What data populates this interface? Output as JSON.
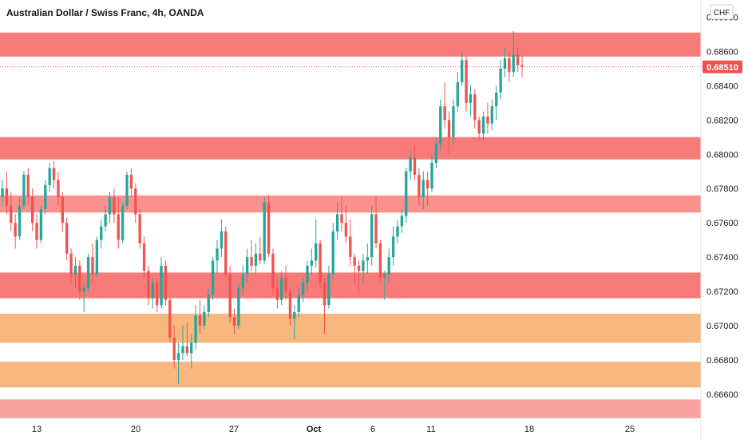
{
  "chart_data": {
    "type": "candlestick",
    "title": "Australian Dollar / Swiss Franc, 4h, OANDA",
    "currency": "CHF",
    "last_price": "0.68510",
    "ylim": [
      0.6646,
      0.689
    ],
    "y_ticks": [
      "0.68800",
      "0.68600",
      "0.68400",
      "0.68200",
      "0.68000",
      "0.67800",
      "0.67600",
      "0.67400",
      "0.67200",
      "0.67000",
      "0.66800",
      "0.66600"
    ],
    "x_ticks": [
      {
        "label": "13",
        "bold": false
      },
      {
        "label": "20",
        "bold": false
      },
      {
        "label": "27",
        "bold": false
      },
      {
        "label": "Oct",
        "bold": true
      },
      {
        "label": "6",
        "bold": false
      },
      {
        "label": "11",
        "bold": false
      },
      {
        "label": "18",
        "bold": false
      },
      {
        "label": "25",
        "bold": false
      }
    ],
    "zones": [
      {
        "from": 0.6857,
        "to": 0.6871,
        "color": "#f77c79"
      },
      {
        "from": 0.6797,
        "to": 0.681,
        "color": "#f77c79"
      },
      {
        "from": 0.6766,
        "to": 0.6776,
        "color": "#f9918e"
      },
      {
        "from": 0.6716,
        "to": 0.6731,
        "color": "#f77c79"
      },
      {
        "from": 0.669,
        "to": 0.6707,
        "color": "#f7b77f"
      },
      {
        "from": 0.6664,
        "to": 0.6679,
        "color": "#f7b77f"
      },
      {
        "from": 0.6646,
        "to": 0.6657,
        "color": "#f9a3a1"
      }
    ],
    "colors": {
      "up": "#26a69a",
      "down": "#ef5350",
      "price_line": "#ef5350"
    },
    "candles": [
      [
        0.6775,
        0.6785,
        0.677,
        0.678
      ],
      [
        0.678,
        0.679,
        0.6765,
        0.677
      ],
      [
        0.677,
        0.6778,
        0.6755,
        0.676
      ],
      [
        0.676,
        0.6765,
        0.6745,
        0.6752
      ],
      [
        0.6752,
        0.6775,
        0.675,
        0.677
      ],
      [
        0.677,
        0.679,
        0.6768,
        0.6788
      ],
      [
        0.6788,
        0.6792,
        0.677,
        0.6775
      ],
      [
        0.6775,
        0.678,
        0.6755,
        0.676
      ],
      [
        0.676,
        0.6765,
        0.6745,
        0.675
      ],
      [
        0.675,
        0.677,
        0.6748,
        0.6768
      ],
      [
        0.6768,
        0.6785,
        0.6765,
        0.6782
      ],
      [
        0.6782,
        0.6795,
        0.6778,
        0.6792
      ],
      [
        0.6792,
        0.6796,
        0.678,
        0.6785
      ],
      [
        0.6785,
        0.679,
        0.677,
        0.6775
      ],
      [
        0.6775,
        0.6778,
        0.6755,
        0.676
      ],
      [
        0.676,
        0.6763,
        0.6738,
        0.6742
      ],
      [
        0.6742,
        0.6745,
        0.6725,
        0.673
      ],
      [
        0.673,
        0.674,
        0.6722,
        0.6735
      ],
      [
        0.6735,
        0.6738,
        0.6715,
        0.672
      ],
      [
        0.672,
        0.6725,
        0.6708,
        0.6722
      ],
      [
        0.6722,
        0.6742,
        0.672,
        0.674
      ],
      [
        0.674,
        0.6748,
        0.6725,
        0.673
      ],
      [
        0.673,
        0.6752,
        0.6728,
        0.675
      ],
      [
        0.675,
        0.6762,
        0.6745,
        0.6758
      ],
      [
        0.6758,
        0.677,
        0.6755,
        0.6765
      ],
      [
        0.6765,
        0.6778,
        0.676,
        0.6775
      ],
      [
        0.6775,
        0.678,
        0.676,
        0.6765
      ],
      [
        0.6765,
        0.6775,
        0.6745,
        0.675
      ],
      [
        0.675,
        0.6772,
        0.6748,
        0.677
      ],
      [
        0.677,
        0.679,
        0.6768,
        0.6788
      ],
      [
        0.6788,
        0.6792,
        0.6775,
        0.678
      ],
      [
        0.678,
        0.6783,
        0.676,
        0.6765
      ],
      [
        0.6765,
        0.6768,
        0.6745,
        0.6748
      ],
      [
        0.6748,
        0.6752,
        0.6728,
        0.6732
      ],
      [
        0.6732,
        0.6735,
        0.6712,
        0.6716
      ],
      [
        0.6716,
        0.6728,
        0.671,
        0.6725
      ],
      [
        0.6725,
        0.6728,
        0.6708,
        0.6712
      ],
      [
        0.6712,
        0.674,
        0.671,
        0.6735
      ],
      [
        0.6735,
        0.6738,
        0.6712,
        0.6715
      ],
      [
        0.6715,
        0.6718,
        0.669,
        0.6693
      ],
      [
        0.6693,
        0.67,
        0.6675,
        0.668
      ],
      [
        0.668,
        0.669,
        0.6666,
        0.6684
      ],
      [
        0.6684,
        0.67,
        0.668,
        0.6688
      ],
      [
        0.6688,
        0.6702,
        0.6682,
        0.6684
      ],
      [
        0.6684,
        0.6695,
        0.6675,
        0.669
      ],
      [
        0.669,
        0.6712,
        0.6686,
        0.6706
      ],
      [
        0.6706,
        0.6715,
        0.6695,
        0.67
      ],
      [
        0.67,
        0.6712,
        0.6698,
        0.6708
      ],
      [
        0.6708,
        0.6722,
        0.6705,
        0.6718
      ],
      [
        0.6718,
        0.674,
        0.6715,
        0.6738
      ],
      [
        0.6738,
        0.675,
        0.673,
        0.6745
      ],
      [
        0.6745,
        0.6762,
        0.674,
        0.6755
      ],
      [
        0.6755,
        0.6758,
        0.6728,
        0.673
      ],
      [
        0.673,
        0.6735,
        0.6702,
        0.6705
      ],
      [
        0.6705,
        0.671,
        0.6695,
        0.67
      ],
      [
        0.67,
        0.6725,
        0.6698,
        0.6722
      ],
      [
        0.6722,
        0.6735,
        0.6718,
        0.673
      ],
      [
        0.673,
        0.6745,
        0.6725,
        0.674
      ],
      [
        0.674,
        0.675,
        0.6732,
        0.6735
      ],
      [
        0.6735,
        0.6748,
        0.673,
        0.6742
      ],
      [
        0.6742,
        0.6752,
        0.6736,
        0.6738
      ],
      [
        0.6738,
        0.6775,
        0.6736,
        0.6772
      ],
      [
        0.6772,
        0.6776,
        0.674,
        0.6742
      ],
      [
        0.6742,
        0.6745,
        0.6718,
        0.6722
      ],
      [
        0.6722,
        0.6728,
        0.671,
        0.6715
      ],
      [
        0.6715,
        0.6732,
        0.6712,
        0.6728
      ],
      [
        0.6728,
        0.6735,
        0.6715,
        0.672
      ],
      [
        0.672,
        0.6722,
        0.67,
        0.6704
      ],
      [
        0.6704,
        0.6712,
        0.6692,
        0.6708
      ],
      [
        0.6708,
        0.6722,
        0.6705,
        0.6718
      ],
      [
        0.6718,
        0.6728,
        0.6714,
        0.6725
      ],
      [
        0.6725,
        0.6738,
        0.672,
        0.6735
      ],
      [
        0.6735,
        0.6745,
        0.673,
        0.6738
      ],
      [
        0.6738,
        0.6762,
        0.6734,
        0.6748
      ],
      [
        0.6748,
        0.675,
        0.6722,
        0.6725
      ],
      [
        0.6725,
        0.6728,
        0.6695,
        0.6712
      ],
      [
        0.6712,
        0.6735,
        0.671,
        0.673
      ],
      [
        0.673,
        0.676,
        0.6726,
        0.6755
      ],
      [
        0.6755,
        0.6772,
        0.675,
        0.6765
      ],
      [
        0.6765,
        0.6775,
        0.6755,
        0.676
      ],
      [
        0.676,
        0.677,
        0.6748,
        0.6752
      ],
      [
        0.6752,
        0.6762,
        0.6735,
        0.674
      ],
      [
        0.674,
        0.6742,
        0.6725,
        0.6735
      ],
      [
        0.6735,
        0.6738,
        0.6718,
        0.6732
      ],
      [
        0.6732,
        0.6742,
        0.6725,
        0.6738
      ],
      [
        0.6738,
        0.6748,
        0.673,
        0.674
      ],
      [
        0.674,
        0.677,
        0.6735,
        0.6765
      ],
      [
        0.6765,
        0.6775,
        0.6745,
        0.6748
      ],
      [
        0.6748,
        0.675,
        0.6725,
        0.6728
      ],
      [
        0.6728,
        0.6732,
        0.6715,
        0.673
      ],
      [
        0.673,
        0.6745,
        0.6725,
        0.674
      ],
      [
        0.674,
        0.6758,
        0.6735,
        0.6752
      ],
      [
        0.6752,
        0.6762,
        0.6748,
        0.6758
      ],
      [
        0.6758,
        0.6768,
        0.6754,
        0.6764
      ],
      [
        0.6764,
        0.6792,
        0.676,
        0.679
      ],
      [
        0.679,
        0.6802,
        0.6785,
        0.6798
      ],
      [
        0.6798,
        0.6805,
        0.6785,
        0.6788
      ],
      [
        0.6788,
        0.6792,
        0.677,
        0.6775
      ],
      [
        0.6775,
        0.679,
        0.6768,
        0.6785
      ],
      [
        0.6785,
        0.679,
        0.677,
        0.678
      ],
      [
        0.678,
        0.68,
        0.6778,
        0.6795
      ],
      [
        0.6795,
        0.681,
        0.6792,
        0.6806
      ],
      [
        0.6806,
        0.6832,
        0.6802,
        0.6828
      ],
      [
        0.6828,
        0.6842,
        0.6815,
        0.682
      ],
      [
        0.682,
        0.6825,
        0.68,
        0.681
      ],
      [
        0.681,
        0.6832,
        0.6806,
        0.6828
      ],
      [
        0.6828,
        0.6848,
        0.6825,
        0.6842
      ],
      [
        0.6842,
        0.686,
        0.684,
        0.6855
      ],
      [
        0.6855,
        0.6858,
        0.6825,
        0.683
      ],
      [
        0.683,
        0.684,
        0.6822,
        0.6835
      ],
      [
        0.6835,
        0.6838,
        0.6815,
        0.682
      ],
      [
        0.682,
        0.6822,
        0.6808,
        0.6812
      ],
      [
        0.6812,
        0.6825,
        0.6808,
        0.6822
      ],
      [
        0.6822,
        0.683,
        0.6812,
        0.6818
      ],
      [
        0.6818,
        0.6832,
        0.6814,
        0.6828
      ],
      [
        0.6828,
        0.684,
        0.682,
        0.6836
      ],
      [
        0.6836,
        0.6855,
        0.6832,
        0.685
      ],
      [
        0.685,
        0.6862,
        0.6845,
        0.6856
      ],
      [
        0.6856,
        0.686,
        0.6842,
        0.6848
      ],
      [
        0.6848,
        0.6872,
        0.6845,
        0.6858
      ],
      [
        0.6858,
        0.6862,
        0.6848,
        0.6852
      ],
      [
        0.6852,
        0.6858,
        0.6845,
        0.6851
      ]
    ]
  }
}
